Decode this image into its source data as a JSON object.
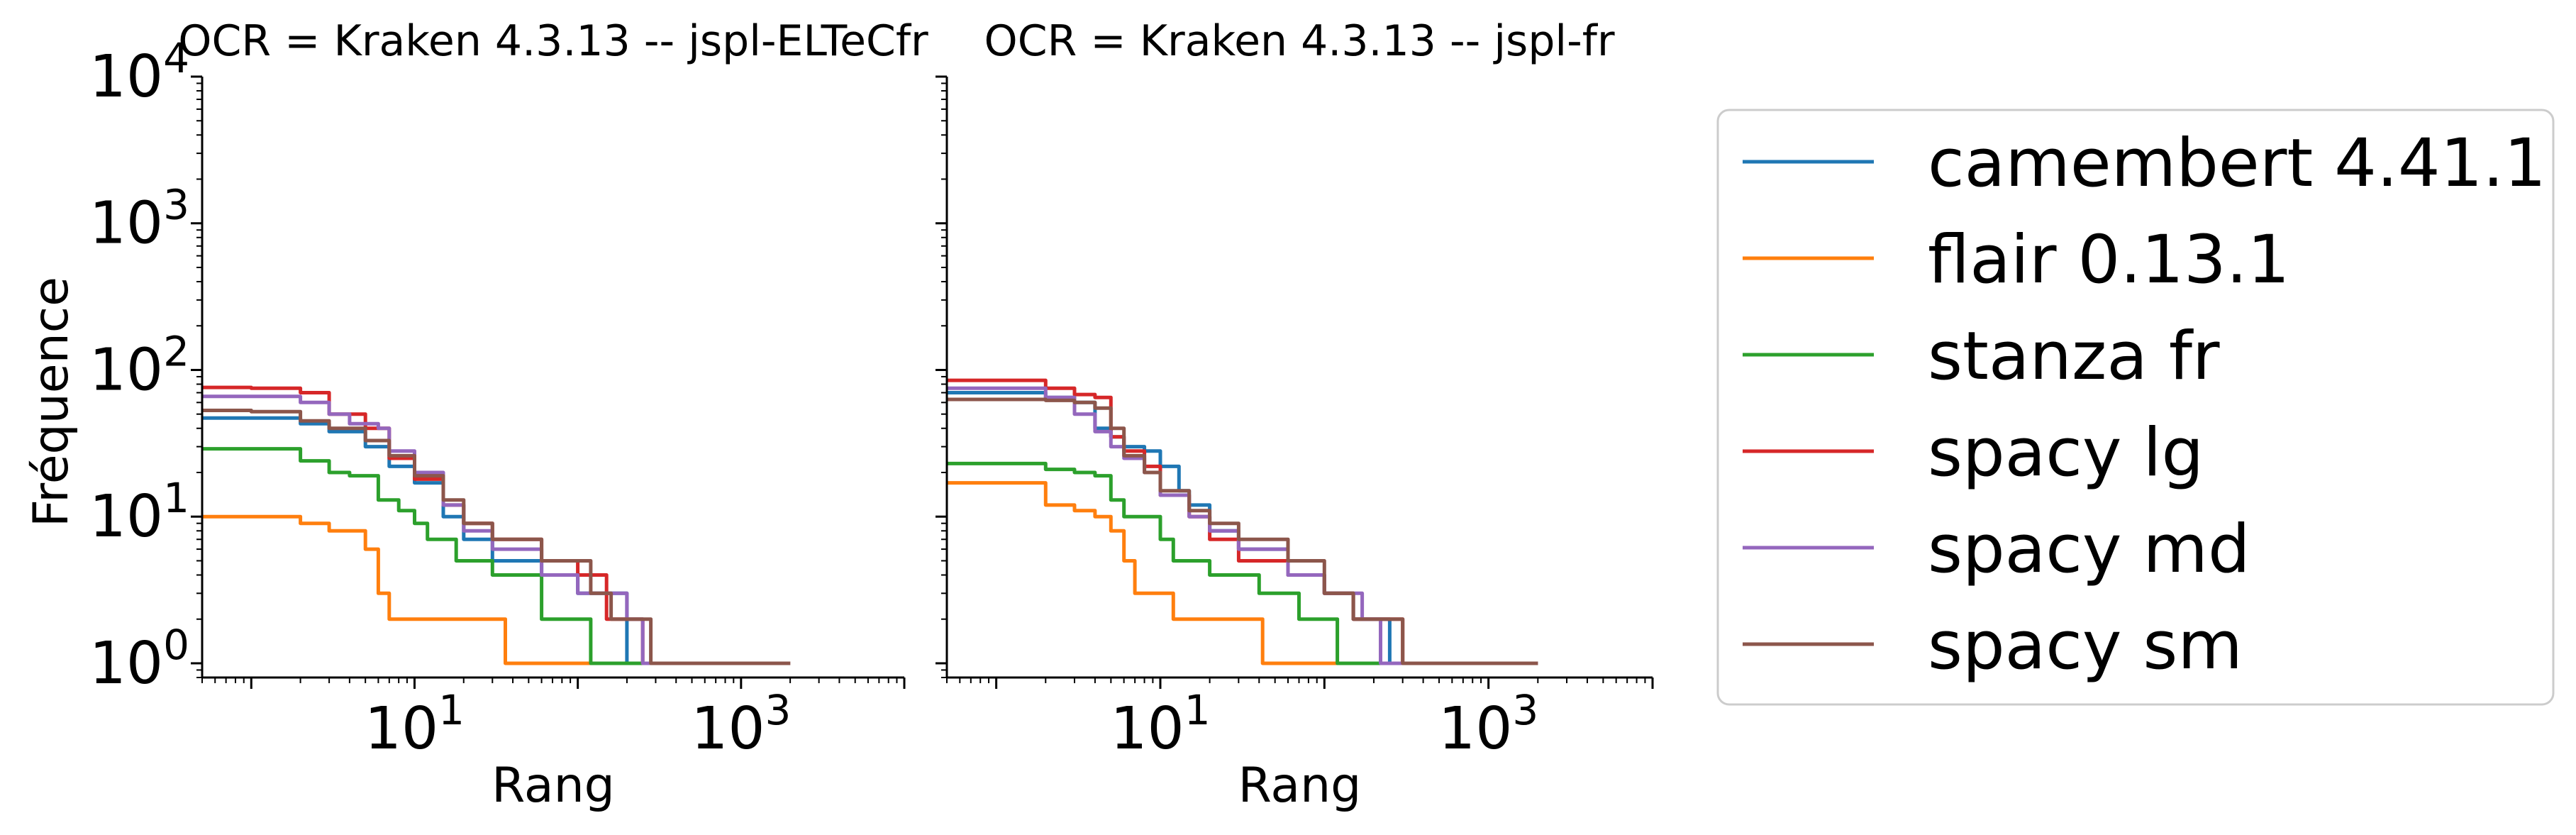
{
  "chart_data": {
    "type": "line",
    "y_axis_label": "Fréquence",
    "x_axis_label": "Rang",
    "x_scale": "log",
    "y_scale": "log",
    "xlim": [
      0.5,
      10000
    ],
    "ylim": [
      0.8,
      10000
    ],
    "x_ticks": [
      {
        "value": 10,
        "base": "10",
        "exp": "1"
      },
      {
        "value": 1000,
        "base": "10",
        "exp": "3"
      }
    ],
    "y_ticks": [
      {
        "value": 1,
        "base": "10",
        "exp": "0"
      },
      {
        "value": 10,
        "base": "10",
        "exp": "1"
      },
      {
        "value": 100,
        "base": "10",
        "exp": "2"
      },
      {
        "value": 1000,
        "base": "10",
        "exp": "3"
      },
      {
        "value": 10000,
        "base": "10",
        "exp": "4"
      }
    ],
    "legend_position": "right",
    "grid": false,
    "series_styles": [
      {
        "name": "camembert 4.41.1",
        "color": "#1f77b4"
      },
      {
        "name": "flair 0.13.1",
        "color": "#ff7f0e"
      },
      {
        "name": "stanza fr",
        "color": "#2ca02c"
      },
      {
        "name": "spacy lg",
        "color": "#d62728"
      },
      {
        "name": "spacy md",
        "color": "#9467bd"
      },
      {
        "name": "spacy sm",
        "color": "#8c564b"
      }
    ],
    "panels": [
      {
        "title": "OCR = Kraken 4.3.13 -- jspl-ELTeCfr",
        "series": [
          {
            "name": "camembert 4.41.1",
            "points": [
              [
                0.5,
                47
              ],
              [
                1,
                47
              ],
              [
                2,
                43
              ],
              [
                3,
                38
              ],
              [
                5,
                30
              ],
              [
                7,
                22
              ],
              [
                10,
                17
              ],
              [
                15,
                10
              ],
              [
                20,
                7
              ],
              [
                30,
                5
              ],
              [
                60,
                4
              ],
              [
                100,
                3
              ],
              [
                200,
                1
              ],
              [
                2000,
                1
              ]
            ]
          },
          {
            "name": "flair 0.13.1",
            "points": [
              [
                0.5,
                10
              ],
              [
                1,
                10
              ],
              [
                2,
                9
              ],
              [
                3,
                8
              ],
              [
                4,
                8
              ],
              [
                5,
                6
              ],
              [
                6,
                3
              ],
              [
                7,
                2
              ],
              [
                10,
                2
              ],
              [
                20,
                2
              ],
              [
                35,
                2
              ],
              [
                36,
                1
              ],
              [
                2000,
                1
              ]
            ]
          },
          {
            "name": "stanza fr",
            "points": [
              [
                0.5,
                29
              ],
              [
                1,
                29
              ],
              [
                2,
                24
              ],
              [
                3,
                20
              ],
              [
                4,
                19
              ],
              [
                5,
                19
              ],
              [
                6,
                13
              ],
              [
                8,
                11
              ],
              [
                10,
                9
              ],
              [
                12,
                7
              ],
              [
                18,
                5
              ],
              [
                30,
                4
              ],
              [
                60,
                2
              ],
              [
                120,
                1
              ],
              [
                2000,
                1
              ]
            ]
          },
          {
            "name": "spacy lg",
            "points": [
              [
                0.5,
                76
              ],
              [
                1,
                75
              ],
              [
                2,
                70
              ],
              [
                3,
                50
              ],
              [
                5,
                40
              ],
              [
                7,
                25
              ],
              [
                10,
                18
              ],
              [
                15,
                12
              ],
              [
                20,
                9
              ],
              [
                30,
                7
              ],
              [
                60,
                5
              ],
              [
                100,
                4
              ],
              [
                150,
                2
              ],
              [
                250,
                1
              ],
              [
                2000,
                1
              ]
            ]
          },
          {
            "name": "spacy md",
            "points": [
              [
                0.5,
                66
              ],
              [
                1,
                66
              ],
              [
                2,
                60
              ],
              [
                3,
                50
              ],
              [
                4,
                43
              ],
              [
                6,
                40
              ],
              [
                7,
                28
              ],
              [
                10,
                20
              ],
              [
                15,
                12
              ],
              [
                20,
                8
              ],
              [
                30,
                6
              ],
              [
                60,
                4
              ],
              [
                100,
                3
              ],
              [
                200,
                2
              ],
              [
                250,
                1
              ],
              [
                2000,
                1
              ]
            ]
          },
          {
            "name": "spacy sm",
            "points": [
              [
                0.5,
                53
              ],
              [
                1,
                52
              ],
              [
                2,
                45
              ],
              [
                3,
                40
              ],
              [
                5,
                33
              ],
              [
                7,
                26
              ],
              [
                10,
                19
              ],
              [
                15,
                13
              ],
              [
                20,
                9
              ],
              [
                30,
                7
              ],
              [
                60,
                5
              ],
              [
                120,
                3
              ],
              [
                160,
                2
              ],
              [
                280,
                1
              ],
              [
                2000,
                1
              ]
            ]
          }
        ]
      },
      {
        "title": "OCR = Kraken 4.3.13 -- jspl-fr",
        "series": [
          {
            "name": "camembert 4.41.1",
            "points": [
              [
                0.5,
                70
              ],
              [
                1,
                70
              ],
              [
                2,
                65
              ],
              [
                3,
                60
              ],
              [
                4,
                40
              ],
              [
                5,
                35
              ],
              [
                6,
                30
              ],
              [
                8,
                28
              ],
              [
                10,
                22
              ],
              [
                13,
                15
              ],
              [
                15,
                12
              ],
              [
                20,
                8
              ],
              [
                30,
                6
              ],
              [
                60,
                4
              ],
              [
                100,
                3
              ],
              [
                150,
                2
              ],
              [
                250,
                1
              ],
              [
                2000,
                1
              ]
            ]
          },
          {
            "name": "flair 0.13.1",
            "points": [
              [
                0.5,
                17
              ],
              [
                1,
                17
              ],
              [
                2,
                12
              ],
              [
                3,
                11
              ],
              [
                4,
                10
              ],
              [
                5,
                8
              ],
              [
                6,
                5
              ],
              [
                7,
                3
              ],
              [
                10,
                3
              ],
              [
                12,
                2
              ],
              [
                20,
                2
              ],
              [
                40,
                2
              ],
              [
                42,
                1
              ],
              [
                2000,
                1
              ]
            ]
          },
          {
            "name": "stanza fr",
            "points": [
              [
                0.5,
                23
              ],
              [
                1,
                23
              ],
              [
                2,
                21
              ],
              [
                3,
                20
              ],
              [
                4,
                19
              ],
              [
                5,
                13
              ],
              [
                6,
                10
              ],
              [
                7,
                10
              ],
              [
                8,
                10
              ],
              [
                10,
                7
              ],
              [
                12,
                5
              ],
              [
                20,
                4
              ],
              [
                40,
                3
              ],
              [
                70,
                2
              ],
              [
                120,
                1
              ],
              [
                2000,
                1
              ]
            ]
          },
          {
            "name": "spacy lg",
            "points": [
              [
                0.5,
                85
              ],
              [
                1,
                85
              ],
              [
                2,
                75
              ],
              [
                3,
                68
              ],
              [
                4,
                65
              ],
              [
                5,
                35
              ],
              [
                6,
                28
              ],
              [
                8,
                22
              ],
              [
                10,
                14
              ],
              [
                15,
                10
              ],
              [
                20,
                7
              ],
              [
                30,
                5
              ],
              [
                60,
                4
              ],
              [
                100,
                3
              ],
              [
                150,
                2
              ],
              [
                300,
                1
              ],
              [
                2000,
                1
              ]
            ]
          },
          {
            "name": "spacy md",
            "points": [
              [
                0.5,
                75
              ],
              [
                1,
                75
              ],
              [
                2,
                65
              ],
              [
                3,
                50
              ],
              [
                4,
                38
              ],
              [
                5,
                30
              ],
              [
                6,
                25
              ],
              [
                8,
                20
              ],
              [
                10,
                14
              ],
              [
                15,
                10
              ],
              [
                20,
                8
              ],
              [
                30,
                6
              ],
              [
                60,
                4
              ],
              [
                100,
                3
              ],
              [
                170,
                2
              ],
              [
                220,
                1
              ],
              [
                2000,
                1
              ]
            ]
          },
          {
            "name": "spacy sm",
            "points": [
              [
                0.5,
                63
              ],
              [
                1,
                63
              ],
              [
                2,
                62
              ],
              [
                3,
                60
              ],
              [
                4,
                55
              ],
              [
                5,
                40
              ],
              [
                6,
                26
              ],
              [
                8,
                20
              ],
              [
                10,
                15
              ],
              [
                15,
                11
              ],
              [
                20,
                9
              ],
              [
                30,
                7
              ],
              [
                60,
                5
              ],
              [
                100,
                3
              ],
              [
                150,
                2
              ],
              [
                300,
                1
              ],
              [
                2000,
                1
              ]
            ]
          }
        ]
      }
    ]
  }
}
